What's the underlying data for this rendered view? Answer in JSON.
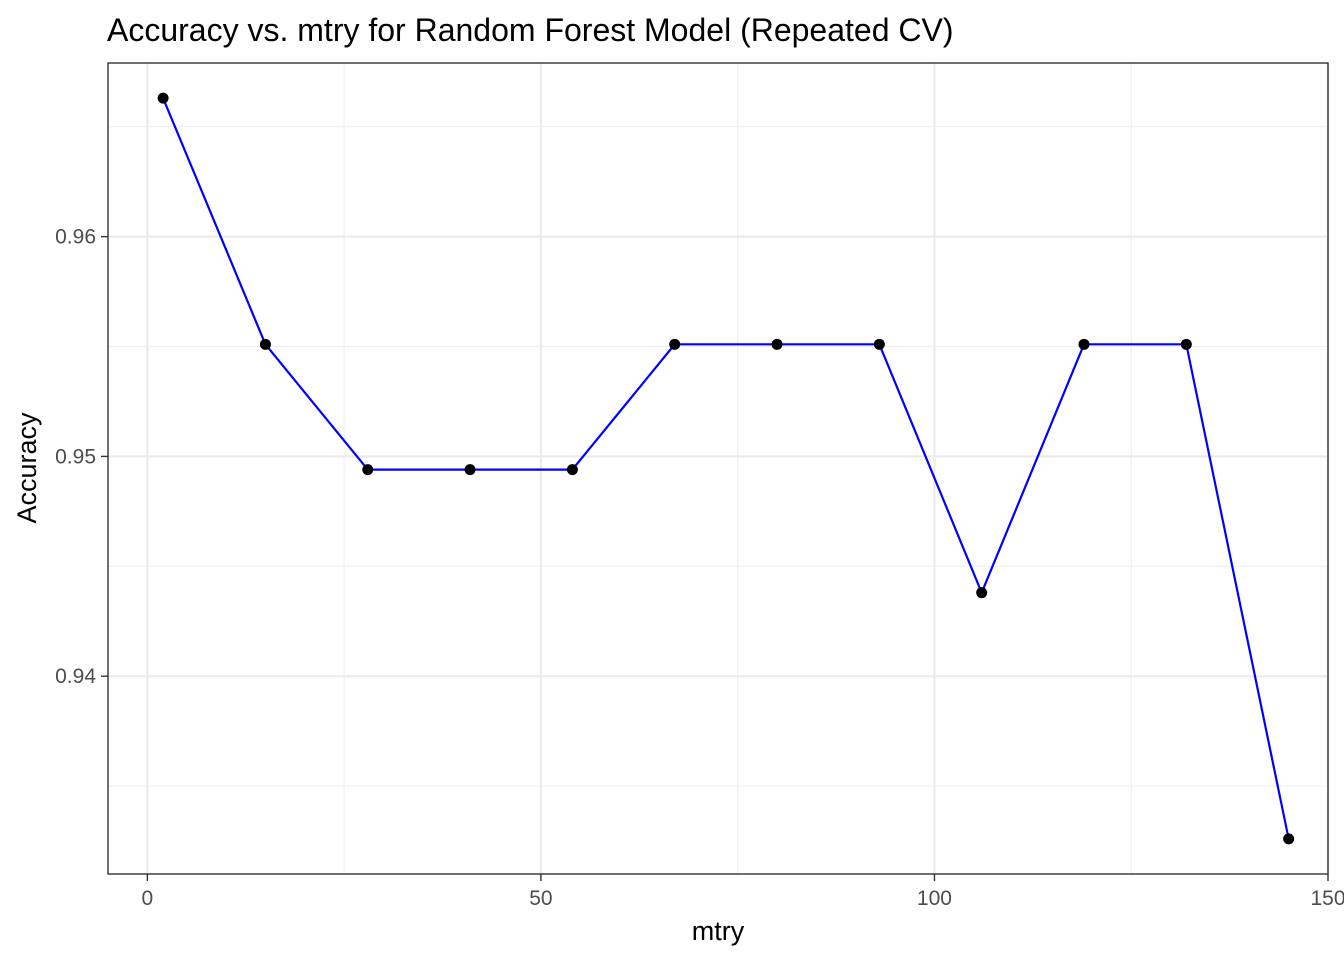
{
  "chart_data": {
    "type": "line",
    "title": "Accuracy vs. mtry for Random Forest Model (Repeated CV)",
    "xlabel": "mtry",
    "ylabel": "Accuracy",
    "x_ticks": [
      0,
      50,
      100,
      150
    ],
    "y_ticks": [
      0.94,
      0.95,
      0.96
    ],
    "x_tick_labels": [
      "0",
      "50",
      "100",
      "150"
    ],
    "y_tick_labels": [
      "0.94",
      "0.95",
      "0.96"
    ],
    "xlim": [
      -5,
      150
    ],
    "ylim": [
      0.931,
      0.9679
    ],
    "grid": true,
    "line_color": "#0000ff",
    "point_color": "#000000",
    "series": [
      {
        "x": [
          2,
          15,
          28,
          41,
          54,
          67,
          80,
          93,
          106,
          119,
          132,
          145
        ],
        "y": [
          0.9663,
          0.9551,
          0.9494,
          0.9494,
          0.9494,
          0.9551,
          0.9551,
          0.9551,
          0.9438,
          0.9551,
          0.9551,
          0.9326
        ]
      }
    ]
  }
}
